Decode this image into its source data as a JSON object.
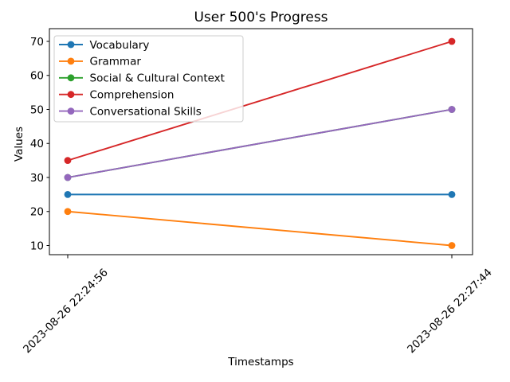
{
  "figure": {
    "background": "#ffffff",
    "frame_color": "#000000",
    "tick_color": "#000000",
    "legend_border_color": "#cccccc"
  },
  "chart_data": {
    "type": "line",
    "title": "User 500's Progress",
    "xlabel": "Timestamps",
    "ylabel": "Values",
    "x": [
      "2023-08-26 22:24:56",
      "2023-08-26 22:27:44"
    ],
    "series": [
      {
        "name": "Vocabulary",
        "color": "#1f77b4",
        "values": [
          25,
          25
        ]
      },
      {
        "name": "Grammar",
        "color": "#ff7f0e",
        "values": [
          20,
          10
        ]
      },
      {
        "name": "Social & Cultural Context",
        "color": "#2ca02c",
        "values": [
          30,
          50
        ]
      },
      {
        "name": "Comprehension",
        "color": "#d62728",
        "values": [
          35,
          70
        ]
      },
      {
        "name": "Conversational Skills",
        "color": "#9467bd",
        "values": [
          30,
          50
        ]
      }
    ],
    "yticks": [
      10,
      20,
      30,
      40,
      50,
      60,
      70
    ],
    "ylim": [
      7,
      73
    ],
    "grid": false,
    "legend_position": "upper-left",
    "marker": "circle",
    "xtick_rotation": 45
  }
}
